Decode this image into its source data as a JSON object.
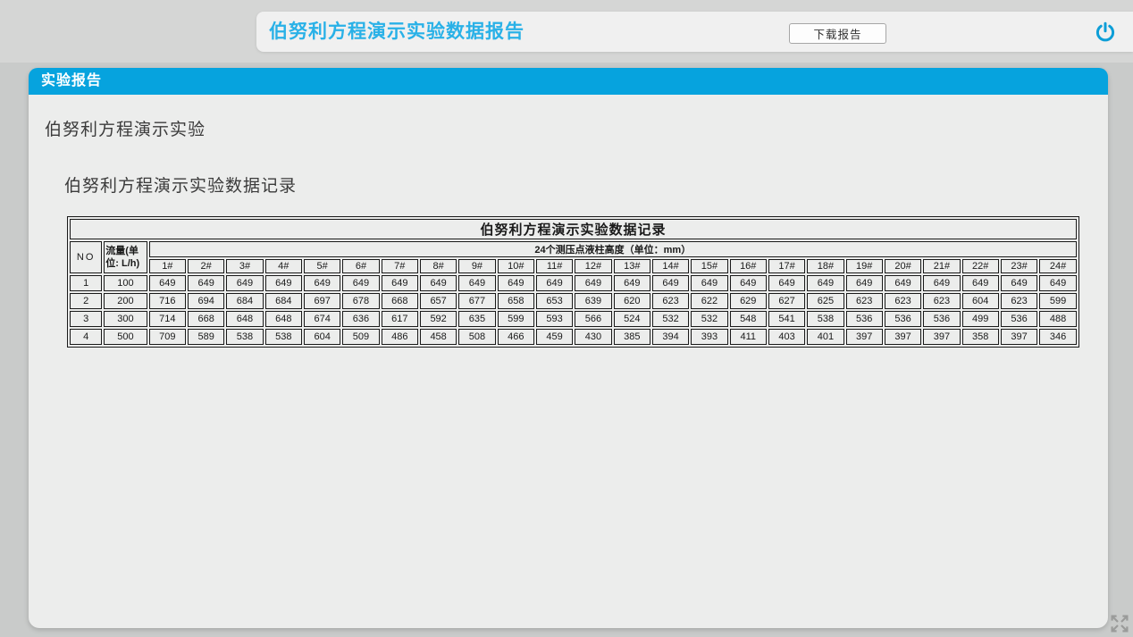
{
  "header": {
    "title": "伯努利方程演示实验数据报告",
    "download_label": "下载报告"
  },
  "panel": {
    "bar_title": "实验报告",
    "heading1": "伯努利方程演示实验",
    "heading2": "伯努利方程演示实验数据记录"
  },
  "table": {
    "title": "伯努利方程演示实验数据记录",
    "col_no": "NO",
    "col_flow": "流量(单位: L/h)",
    "span_header": "24个测压点液柱高度（单位：mm）",
    "point_labels": [
      "1#",
      "2#",
      "3#",
      "4#",
      "5#",
      "6#",
      "7#",
      "8#",
      "9#",
      "10#",
      "11#",
      "12#",
      "13#",
      "14#",
      "15#",
      "16#",
      "17#",
      "18#",
      "19#",
      "20#",
      "21#",
      "22#",
      "23#",
      "24#"
    ],
    "rows": [
      {
        "no": "1",
        "flow": "100",
        "values": [
          649,
          649,
          649,
          649,
          649,
          649,
          649,
          649,
          649,
          649,
          649,
          649,
          649,
          649,
          649,
          649,
          649,
          649,
          649,
          649,
          649,
          649,
          649,
          649
        ]
      },
      {
        "no": "2",
        "flow": "200",
        "values": [
          716,
          694,
          684,
          684,
          697,
          678,
          668,
          657,
          677,
          658,
          653,
          639,
          620,
          623,
          622,
          629,
          627,
          625,
          623,
          623,
          623,
          604,
          623,
          599
        ]
      },
      {
        "no": "3",
        "flow": "300",
        "values": [
          714,
          668,
          648,
          648,
          674,
          636,
          617,
          592,
          635,
          599,
          593,
          566,
          524,
          532,
          532,
          548,
          541,
          538,
          536,
          536,
          536,
          499,
          536,
          488
        ]
      },
      {
        "no": "4",
        "flow": "500",
        "values": [
          709,
          589,
          538,
          538,
          604,
          509,
          486,
          458,
          508,
          466,
          459,
          430,
          385,
          394,
          393,
          411,
          403,
          401,
          397,
          397,
          397,
          358,
          397,
          346
        ]
      }
    ]
  },
  "colors": {
    "accent_blue": "#06a3de",
    "title_cyan": "#29b1e7",
    "page_bg": "#c9cbca",
    "panel_bg": "#ecedec"
  }
}
